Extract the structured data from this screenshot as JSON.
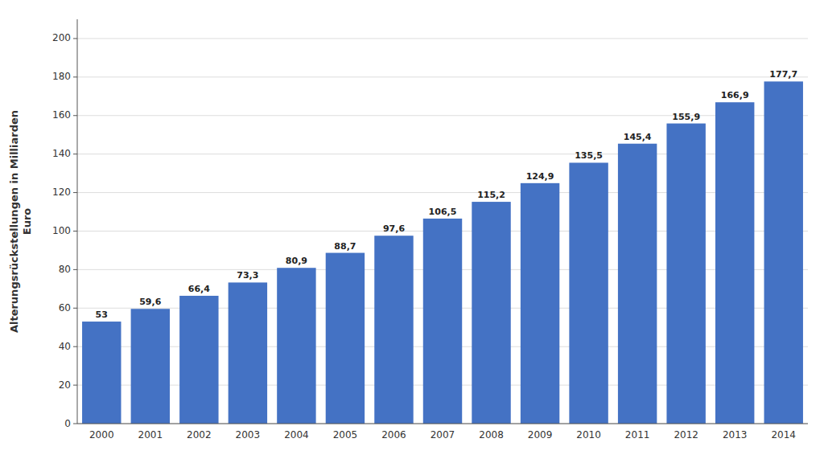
{
  "chart_data": {
    "type": "bar",
    "ylabel": "Alterungsrückstellungen in Milliarden\nEuro",
    "categories": [
      "2000",
      "2001",
      "2002",
      "2003",
      "2004",
      "2005",
      "2006",
      "2007",
      "2008",
      "2009",
      "2010",
      "2011",
      "2012",
      "2013",
      "2014"
    ],
    "values": [
      53.0,
      59.6,
      66.4,
      73.3,
      80.9,
      88.7,
      97.6,
      106.5,
      115.2,
      124.9,
      135.5,
      145.4,
      155.9,
      166.9,
      177.7
    ],
    "value_labels": [
      "53",
      "59,6",
      "66,4",
      "73,3",
      "80,9",
      "88,7",
      "97,6",
      "106,5",
      "115,2",
      "124,9",
      "135,5",
      "145,4",
      "155,9",
      "166,9",
      "177,7"
    ],
    "data_labels": true,
    "color": "#4472c4",
    "ylim": [
      0,
      210
    ],
    "yticks": [
      0,
      20,
      40,
      60,
      80,
      100,
      120,
      140,
      160,
      180,
      200
    ],
    "grid": true
  }
}
